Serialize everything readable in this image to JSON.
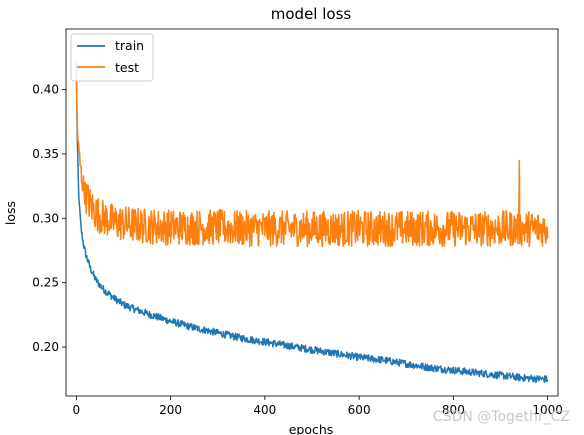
{
  "chart_data": {
    "type": "line",
    "title": "model loss",
    "xlabel": "epochs",
    "ylabel": "loss",
    "xlim": [
      -22,
      1022
    ],
    "ylim": [
      0.162,
      0.447
    ],
    "xticks": [
      0,
      200,
      400,
      600,
      800,
      1000
    ],
    "yticks": [
      0.2,
      0.25,
      0.3,
      0.35,
      0.4
    ],
    "grid": false,
    "legend_position": "top-left",
    "series": [
      {
        "name": "train",
        "color": "#1f77b4",
        "x": [
          0,
          2,
          5,
          10,
          15,
          20,
          30,
          40,
          50,
          60,
          80,
          100,
          120,
          150,
          200,
          250,
          300,
          350,
          400,
          450,
          500,
          550,
          600,
          650,
          700,
          750,
          800,
          850,
          900,
          950,
          1000
        ],
        "y": [
          0.422,
          0.36,
          0.318,
          0.292,
          0.28,
          0.272,
          0.261,
          0.253,
          0.248,
          0.244,
          0.238,
          0.233,
          0.23,
          0.226,
          0.22,
          0.215,
          0.211,
          0.207,
          0.204,
          0.201,
          0.198,
          0.195,
          0.192,
          0.19,
          0.187,
          0.184,
          0.182,
          0.18,
          0.178,
          0.176,
          0.175
        ]
      },
      {
        "name": "test",
        "color": "#ff7f0e",
        "x": [
          0,
          2,
          5,
          10,
          15,
          20,
          30,
          40,
          50,
          60,
          80,
          100,
          120,
          150,
          200,
          250,
          300,
          350,
          400,
          450,
          500,
          550,
          600,
          650,
          700,
          750,
          800,
          850,
          900,
          950,
          1000
        ],
        "y": [
          0.405,
          0.372,
          0.352,
          0.335,
          0.325,
          0.318,
          0.31,
          0.305,
          0.302,
          0.3,
          0.297,
          0.296,
          0.295,
          0.294,
          0.293,
          0.293,
          0.293,
          0.292,
          0.292,
          0.292,
          0.292,
          0.292,
          0.292,
          0.292,
          0.292,
          0.292,
          0.292,
          0.292,
          0.292,
          0.292,
          0.292
        ]
      }
    ]
  },
  "watermark": "CSDN @Togethr_CZ"
}
